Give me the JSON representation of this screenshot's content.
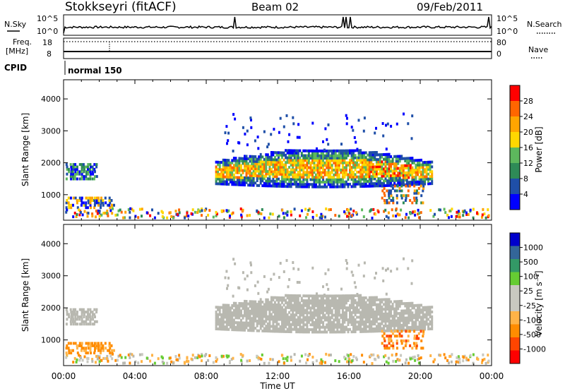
{
  "header": {
    "station": "Stokkseyri (fitACF)",
    "beam": "Beam 02",
    "date": "09/Feb/2011"
  },
  "status_panels": {
    "nsky_label": "N.Sky",
    "nsky_ticks": [
      "10^5",
      "10^0"
    ],
    "nsearch_label": "N.Search",
    "nsearch_ticks": [
      "10^5",
      "10^0"
    ],
    "freq_label_1": "Freq.",
    "freq_label_2": "[MHz]",
    "freq_ticks": [
      "18",
      "8"
    ],
    "nave_label": "Nave",
    "nave_ticks": [
      "80",
      "0"
    ],
    "cpid_label": "CPID",
    "cpid_value": "normal 150"
  },
  "colors": {
    "power_scale": [
      "#0000ff",
      "#1f4fa8",
      "#2e8b57",
      "#5db85d",
      "#ffd700",
      "#ffa500",
      "#ff6600",
      "#ff0000"
    ],
    "velocity_scale": [
      "#ff0000",
      "#ff4500",
      "#ff8c00",
      "#ffb347",
      "#c8c8c0",
      "#c8c8c0",
      "#66cc33",
      "#339966",
      "#336699",
      "#0000cc"
    ],
    "ground_scatter": "#b8b8b0"
  },
  "chart_data": [
    {
      "type": "heatmap",
      "name": "power",
      "ylabel": "Slant Range [km]",
      "yticks": [
        "4000",
        "3000",
        "2000",
        "1000"
      ],
      "ylim": [
        200,
        4600
      ],
      "xlim": [
        0,
        24
      ],
      "xticks": [
        "00:00",
        "04:00",
        "08:00",
        "12:00",
        "16:00",
        "20:00",
        "00:00"
      ],
      "colorbar_label": "Power [dB]",
      "colorbar_ticks": [
        "28",
        "24",
        "20",
        "16",
        "12",
        "8",
        "4"
      ],
      "colorbar_range": [
        0,
        30
      ],
      "grid": false
    },
    {
      "type": "heatmap",
      "name": "velocity",
      "ylabel": "Slant Range [km]",
      "yticks": [
        "4000",
        "3000",
        "2000",
        "1000"
      ],
      "ylim": [
        200,
        4600
      ],
      "xlim": [
        0,
        24
      ],
      "xticks": [
        "00:00",
        "04:00",
        "08:00",
        "12:00",
        "16:00",
        "20:00",
        "00:00"
      ],
      "xlabel": "Time UT",
      "colorbar_label": "Velocity [m s⁻¹]",
      "colorbar_ticks": [
        "1000",
        "500",
        "100",
        "25",
        "-25",
        "-100",
        "-500",
        "-1000"
      ],
      "grid": false
    }
  ]
}
